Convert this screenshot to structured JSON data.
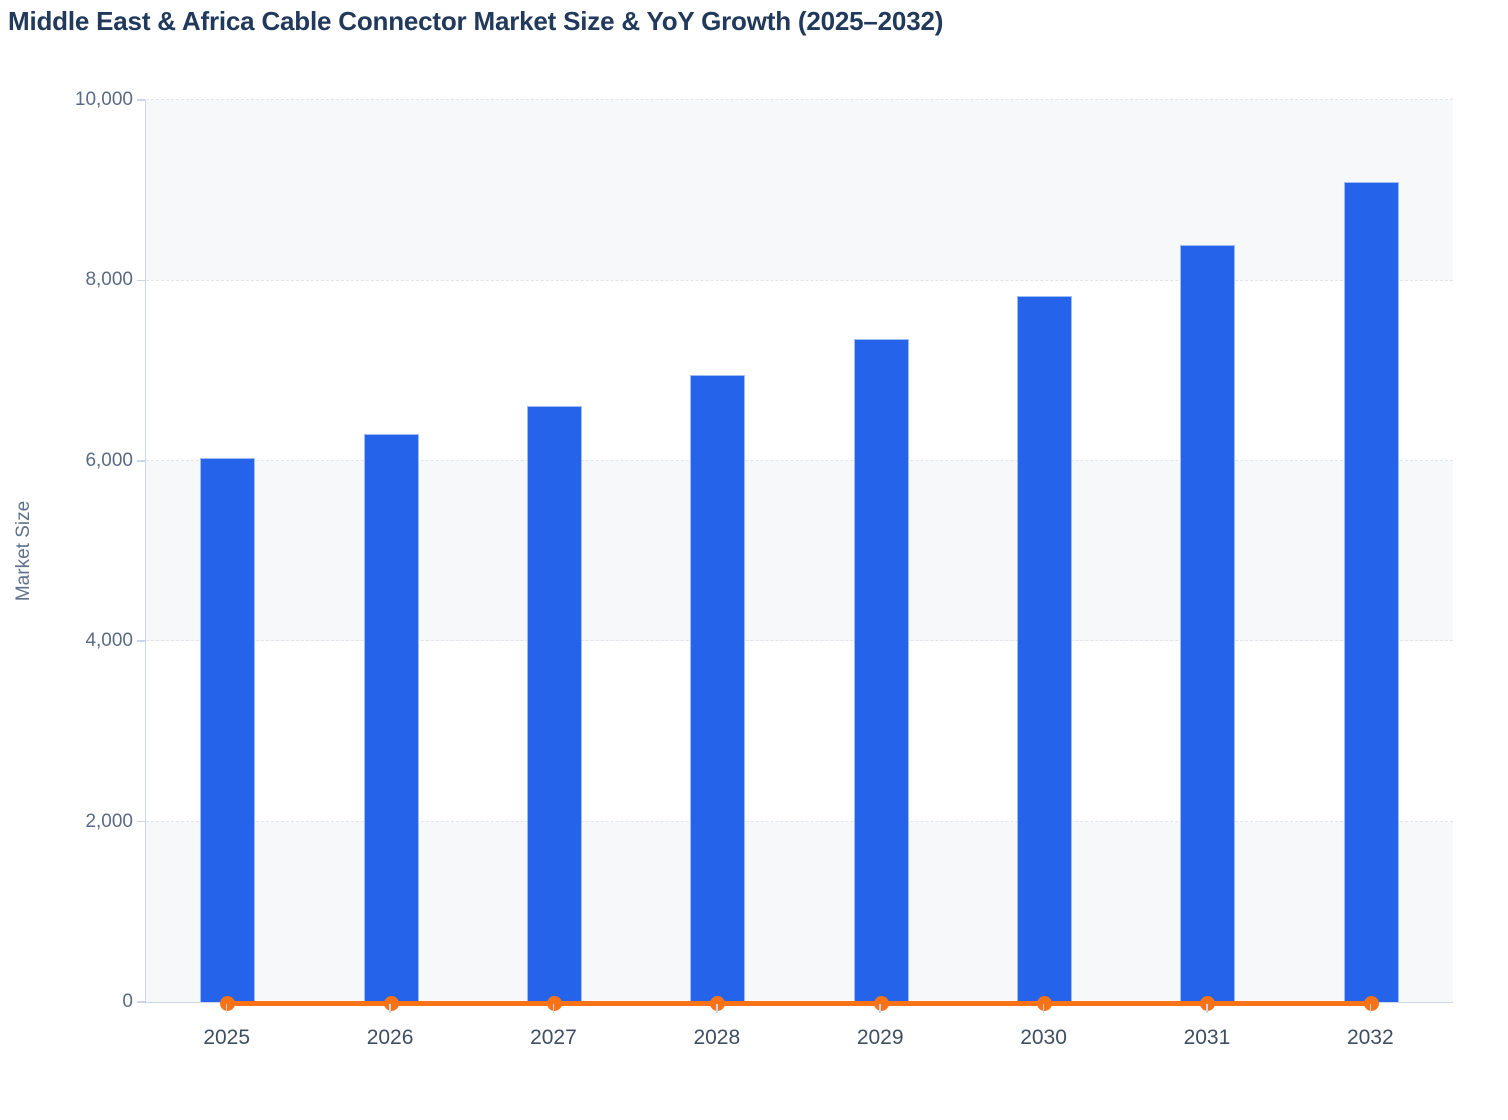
{
  "chart": {
    "title": "Middle East & Africa Cable Connector Market Size & YoY Growth (2025–2032)",
    "y_axis": {
      "label": "Market Size",
      "min": 0,
      "max": 10000
    },
    "x_axis": {
      "categories": [
        "2025",
        "2026",
        "2027",
        "2028",
        "2029",
        "2030",
        "2031",
        "2032"
      ]
    },
    "colors": {
      "bar_fill": "#2563eb",
      "bar_border": "#9fbdf3",
      "yoy_line": "#f97316",
      "band_fill": "#f7f8fa",
      "gridline": "#e2e4ea",
      "axis_line": "#ccd6eb",
      "title_text": "#21395a",
      "y_tick_text": "#5b6b85",
      "x_tick_text": "#3f4e63"
    }
  },
  "chart_data": {
    "type": "bar",
    "title": "Middle East & Africa Cable Connector Market Size & YoY Growth (2025–2032)",
    "xlabel": "",
    "ylabel": "Market Size",
    "categories": [
      "2025",
      "2026",
      "2027",
      "2028",
      "2029",
      "2030",
      "2031",
      "2032"
    ],
    "series": [
      {
        "name": "Market Size",
        "type": "bar",
        "color": "#2563eb",
        "values": [
          6030,
          6300,
          6610,
          6950,
          7350,
          7830,
          8390,
          9090
        ]
      },
      {
        "name": "YoY Growth",
        "type": "line",
        "color": "#f97316",
        "values": [
          0,
          0,
          0,
          0,
          0,
          0,
          0,
          0
        ],
        "note": "flat line with round markers rendered along the zero baseline of the left axis"
      }
    ],
    "ylim": [
      0,
      10000
    ],
    "yticks": [
      {
        "value": 0,
        "label": "0"
      },
      {
        "value": 2000,
        "label": "2,000"
      },
      {
        "value": 4000,
        "label": "4,000"
      },
      {
        "value": 6000,
        "label": "6,000"
      },
      {
        "value": 8000,
        "label": "8,000"
      },
      {
        "value": 10000,
        "label": "10,000"
      }
    ],
    "grid": "horizontal dashed gridlines with alternating light row bands",
    "legend": "none"
  }
}
